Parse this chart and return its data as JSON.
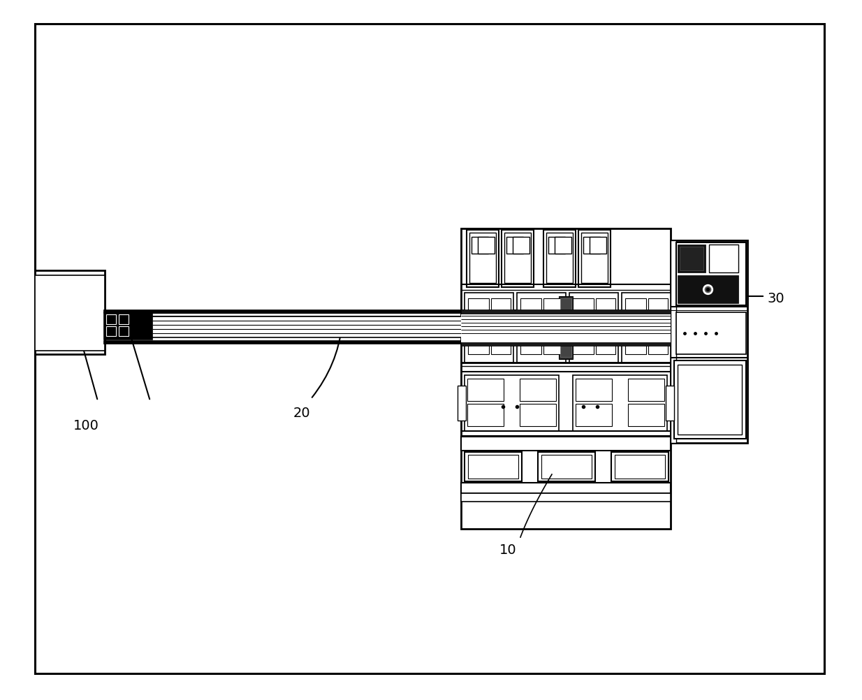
{
  "bg_color": "#ffffff",
  "lc": "#000000",
  "fig_width": 12.34,
  "fig_height": 10.03,
  "dpi": 100,
  "label_10": "10",
  "label_20": "20",
  "label_30": "30",
  "label_100": "100"
}
